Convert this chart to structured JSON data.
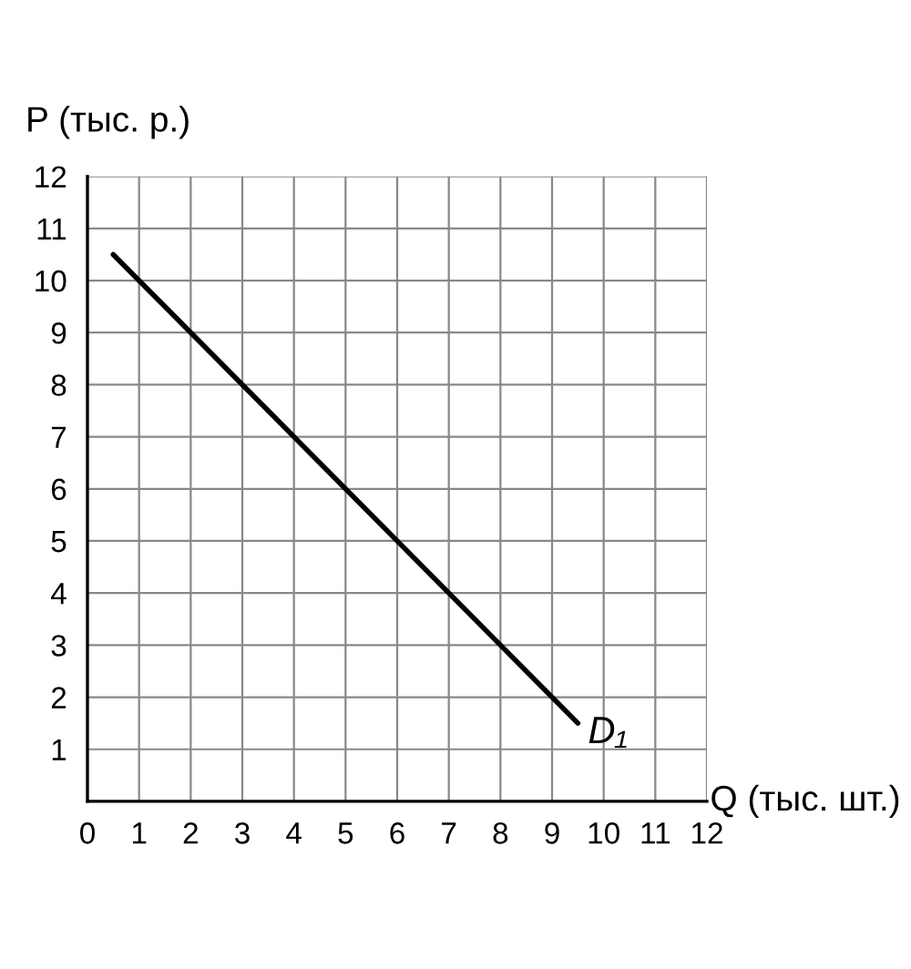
{
  "chart_data": {
    "type": "line",
    "xlabel": "Q (тыс. шт.)",
    "ylabel": "P (тыс. р.)",
    "x": [
      0.5,
      9.5
    ],
    "series": [
      {
        "color": "#000000",
        "values": [
          10.5,
          1.5
        ]
      }
    ],
    "xlim": [
      0,
      12
    ],
    "ylim": [
      0,
      12
    ],
    "xticks": [
      0,
      1,
      2,
      3,
      4,
      5,
      6,
      7,
      8,
      9,
      10,
      11,
      12
    ],
    "yticks": [
      1,
      2,
      3,
      4,
      5,
      6,
      7,
      8,
      9,
      10,
      11,
      12
    ],
    "grid": true,
    "marker": "none",
    "line_style": "solid",
    "annotations": [
      {
        "text": "D₁",
        "x": 9.5,
        "y": 1.5
      }
    ]
  }
}
